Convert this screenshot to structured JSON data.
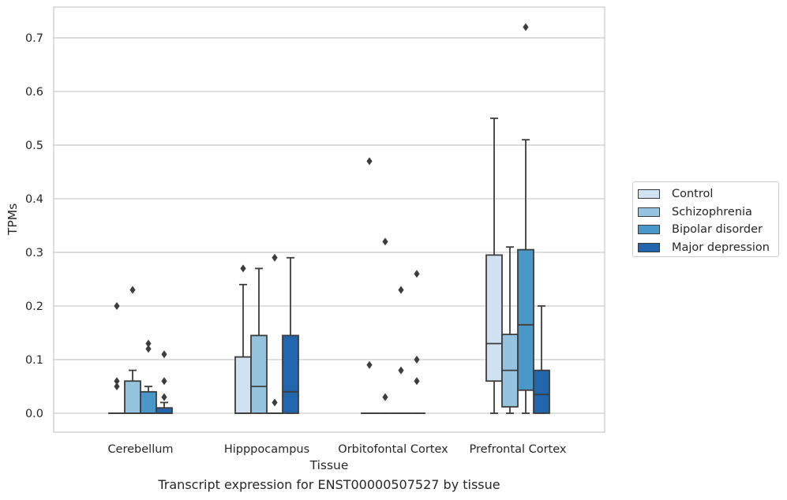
{
  "chart_data": {
    "type": "box",
    "caption": "Transcript expression for ENST00000507527 by tissue",
    "xlabel": "Tissue",
    "ylabel": "TPMs",
    "ylim": [
      -0.035,
      0.76
    ],
    "yticks": [
      "0.0",
      "0.1",
      "0.2",
      "0.3",
      "0.4",
      "0.5",
      "0.6",
      "0.7"
    ],
    "grid": true,
    "legend_position": "right",
    "categories": [
      "Cerebellum",
      "Hipppocampus",
      "Orbitofontal Cortex",
      "Prefrontal Cortex"
    ],
    "series": [
      {
        "name": "Control",
        "color": "#d0e1f2",
        "boxes": [
          {
            "q1": 0,
            "median": 0,
            "q3": 0,
            "whisker_low": 0,
            "whisker_high": 0,
            "outliers": [
              0.05,
              0.06,
              0.2
            ]
          },
          {
            "q1": 0,
            "median": 0,
            "q3": 0.105,
            "whisker_low": 0,
            "whisker_high": 0.24,
            "outliers": [
              0.27
            ]
          },
          {
            "q1": 0,
            "median": 0,
            "q3": 0,
            "whisker_low": 0,
            "whisker_high": 0,
            "outliers": [
              0.09,
              0.47
            ]
          },
          {
            "q1": 0.06,
            "median": 0.13,
            "q3": 0.295,
            "whisker_low": 0,
            "whisker_high": 0.55,
            "outliers": []
          }
        ]
      },
      {
        "name": "Schizophrenia",
        "color": "#94c4df",
        "boxes": [
          {
            "q1": 0,
            "median": 0,
            "q3": 0.06,
            "whisker_low": 0,
            "whisker_high": 0.08,
            "outliers": [
              0.23
            ]
          },
          {
            "q1": 0,
            "median": 0.05,
            "q3": 0.145,
            "whisker_low": 0,
            "whisker_high": 0.27,
            "outliers": []
          },
          {
            "q1": 0,
            "median": 0,
            "q3": 0,
            "whisker_low": 0,
            "whisker_high": 0,
            "outliers": [
              0.03,
              0.32
            ]
          },
          {
            "q1": 0.012,
            "median": 0.08,
            "q3": 0.147,
            "whisker_low": 0,
            "whisker_high": 0.31,
            "outliers": []
          }
        ]
      },
      {
        "name": "Bipolar disorder",
        "color": "#4a98c9",
        "boxes": [
          {
            "q1": 0,
            "median": 0,
            "q3": 0.04,
            "whisker_low": 0,
            "whisker_high": 0.05,
            "outliers": [
              0.12,
              0.13
            ]
          },
          {
            "q1": 0,
            "median": 0,
            "q3": 0,
            "whisker_low": 0,
            "whisker_high": 0,
            "outliers": [
              0.02,
              0.29
            ]
          },
          {
            "q1": 0,
            "median": 0,
            "q3": 0,
            "whisker_low": 0,
            "whisker_high": 0,
            "outliers": [
              0.08,
              0.23
            ]
          },
          {
            "q1": 0.043,
            "median": 0.165,
            "q3": 0.305,
            "whisker_low": 0,
            "whisker_high": 0.51,
            "outliers": [
              0.72
            ]
          }
        ]
      },
      {
        "name": "Major depression",
        "color": "#2166ac",
        "boxes": [
          {
            "q1": 0,
            "median": 0,
            "q3": 0.01,
            "whisker_low": 0,
            "whisker_high": 0.02,
            "outliers": [
              0.03,
              0.06,
              0.11
            ]
          },
          {
            "q1": 0,
            "median": 0.04,
            "q3": 0.145,
            "whisker_low": 0,
            "whisker_high": 0.29,
            "outliers": []
          },
          {
            "q1": 0,
            "median": 0,
            "q3": 0,
            "whisker_low": 0,
            "whisker_high": 0,
            "outliers": [
              0.06,
              0.1,
              0.26
            ]
          },
          {
            "q1": 0,
            "median": 0.035,
            "q3": 0.08,
            "whisker_low": 0,
            "whisker_high": 0.2,
            "outliers": []
          }
        ]
      }
    ]
  }
}
